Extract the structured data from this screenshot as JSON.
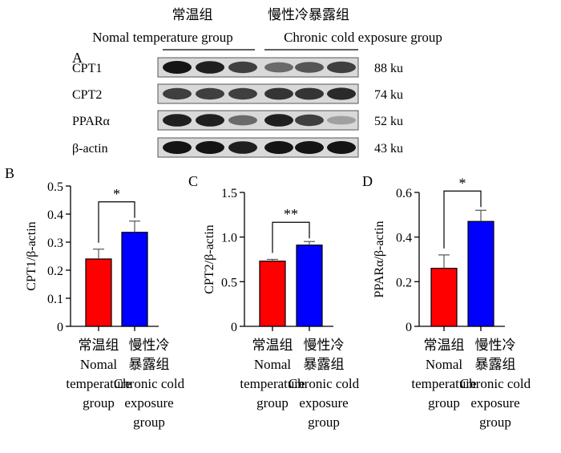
{
  "blot": {
    "panel_letter": "A",
    "group_labels": [
      {
        "zh": "常温组",
        "en": "Nomal temperature group"
      },
      {
        "zh": "慢性冷暴露组",
        "en": "Chronic cold exposure group"
      }
    ],
    "rows": [
      {
        "protein": "CPT1",
        "size": "88 ku",
        "intensities": [
          1.0,
          0.95,
          0.8,
          0.6,
          0.7,
          0.8
        ]
      },
      {
        "protein": "CPT2",
        "size": "74 ku",
        "intensities": [
          0.8,
          0.8,
          0.8,
          0.85,
          0.85,
          0.9
        ]
      },
      {
        "protein": "PPARα",
        "size": "52 ku",
        "intensities": [
          0.95,
          0.95,
          0.6,
          0.95,
          0.8,
          0.35
        ]
      },
      {
        "protein": "β-actin",
        "size": "43 ku",
        "intensities": [
          1.0,
          1.0,
          0.95,
          1.0,
          1.0,
          1.0
        ]
      }
    ]
  },
  "chart_data": [
    {
      "type": "bar",
      "panel_letter": "B",
      "ylabel": "CPT1/β-actin",
      "ylim": [
        0,
        0.5
      ],
      "yticks": [
        "0",
        "0.1",
        "0.2",
        "0.3",
        "0.4",
        "0.5"
      ],
      "ytick_values": [
        0,
        0.1,
        0.2,
        0.3,
        0.4,
        0.5
      ],
      "categories": [
        [
          "常温组",
          "Nomal",
          "temperature",
          "group"
        ],
        [
          "慢性冷",
          "暴露组",
          "Chronic cold",
          "exposure",
          "group"
        ]
      ],
      "values": [
        0.24,
        0.335
      ],
      "errors": [
        0.035,
        0.04
      ],
      "colors": [
        "#ff0000",
        "#0000ff"
      ],
      "significance": "*"
    },
    {
      "type": "bar",
      "panel_letter": "C",
      "ylabel": "CPT2/β-actin",
      "ylim": [
        0,
        1.5
      ],
      "yticks": [
        "0",
        "0.5",
        "1.0",
        "1.5"
      ],
      "ytick_values": [
        0,
        0.5,
        1.0,
        1.5
      ],
      "categories": [
        [
          "常温组",
          "Nomal",
          "temperature",
          "group"
        ],
        [
          "慢性冷",
          "暴露组",
          "Chronic cold",
          "exposure",
          "group"
        ]
      ],
      "values": [
        0.73,
        0.91
      ],
      "errors": [
        0.02,
        0.04
      ],
      "colors": [
        "#ff0000",
        "#0000ff"
      ],
      "significance": "**"
    },
    {
      "type": "bar",
      "panel_letter": "D",
      "ylabel": "PPARα/β-actin",
      "ylim": [
        0,
        0.6
      ],
      "yticks": [
        "0",
        "0.2",
        "0.4",
        "0.6"
      ],
      "ytick_values": [
        0,
        0.2,
        0.4,
        0.6
      ],
      "categories": [
        [
          "常温组",
          "Nomal",
          "temperature",
          "group"
        ],
        [
          "慢性冷",
          "暴露组",
          "Chronic cold",
          "exposure",
          "group"
        ]
      ],
      "values": [
        0.26,
        0.47
      ],
      "errors": [
        0.06,
        0.05
      ],
      "colors": [
        "#ff0000",
        "#0000ff"
      ],
      "significance": "*"
    }
  ]
}
